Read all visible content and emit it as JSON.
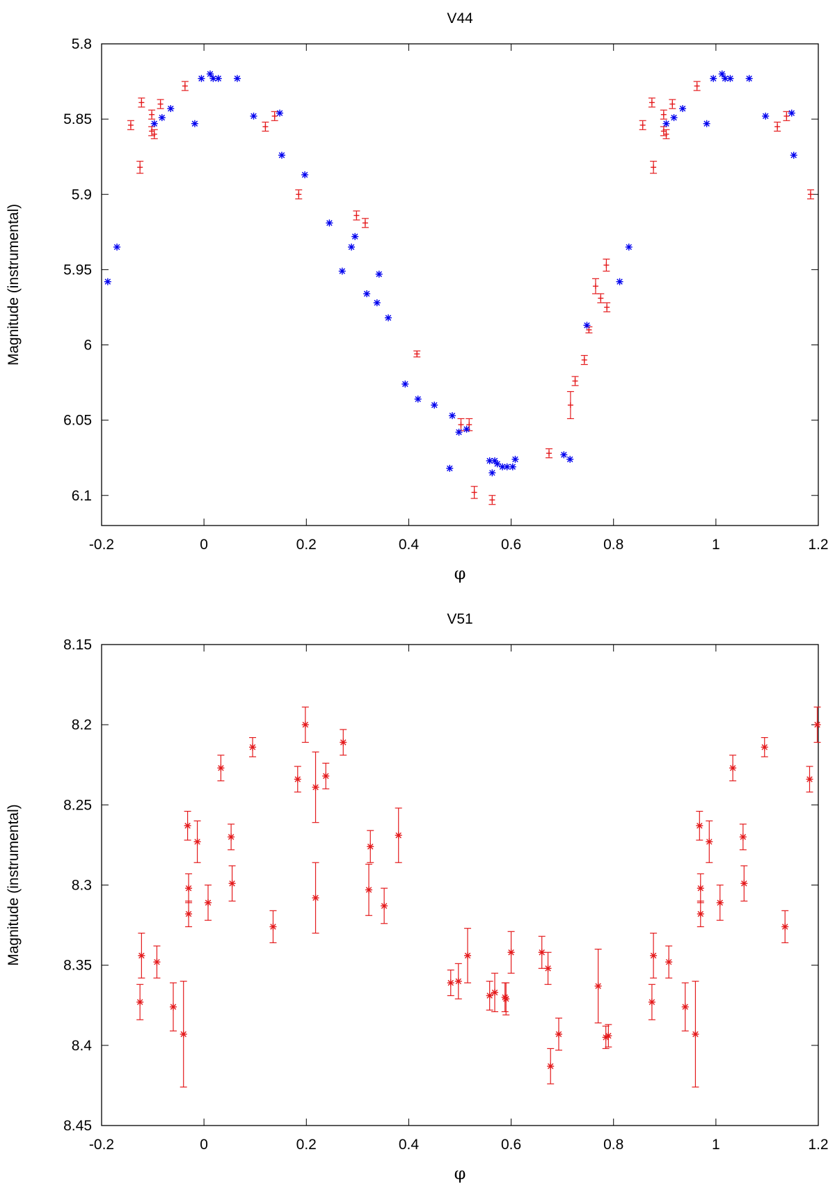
{
  "chart_data": [
    {
      "type": "scatter",
      "title": "V44",
      "xlabel": "φ",
      "ylabel": "Magnitude (instrumental)",
      "xlim": [
        -0.2,
        1.2
      ],
      "ylim": [
        5.8,
        6.12
      ],
      "y_inverted": true,
      "xticks": [
        "-0.2",
        "0",
        "0.2",
        "0.4",
        "0.6",
        "0.8",
        "1",
        "1.2"
      ],
      "yticks": [
        "5.8",
        "5.85",
        "5.9",
        "5.95",
        "6",
        "6.05",
        "6.1"
      ],
      "xtick_values": [
        -0.2,
        0,
        0.2,
        0.4,
        0.6,
        0.8,
        1,
        1.2
      ],
      "ytick_values": [
        5.8,
        5.85,
        5.9,
        5.95,
        6,
        6.05,
        6.1
      ],
      "grid": false,
      "series": [
        {
          "color": "#e41a1c",
          "marker": "plus-errorbar",
          "points": [
            [
              -0.143,
              5.854,
              0.003
            ],
            [
              -0.122,
              5.839,
              0.003
            ],
            [
              -0.125,
              5.882,
              0.004
            ],
            [
              -0.102,
              5.847,
              0.003
            ],
            [
              -0.102,
              5.858,
              0.003
            ],
            [
              -0.097,
              5.86,
              0.003
            ],
            [
              -0.085,
              5.84,
              0.003
            ],
            [
              -0.037,
              5.828,
              0.003
            ],
            [
              0.12,
              5.855,
              0.003
            ],
            [
              0.138,
              5.848,
              0.003
            ],
            [
              0.185,
              5.9,
              0.003
            ],
            [
              0.298,
              5.914,
              0.003
            ],
            [
              0.315,
              5.919,
              0.003
            ],
            [
              0.416,
              6.006,
              0.002
            ],
            [
              0.502,
              6.053,
              0.004
            ],
            [
              0.518,
              6.053,
              0.004
            ],
            [
              0.528,
              6.098,
              0.004
            ],
            [
              0.563,
              6.103,
              0.003
            ],
            [
              0.674,
              6.072,
              0.003
            ],
            [
              0.716,
              6.04,
              0.009
            ],
            [
              0.725,
              6.024,
              0.003
            ],
            [
              0.743,
              6.01,
              0.003
            ],
            [
              0.752,
              5.99,
              0.002
            ],
            [
              0.765,
              5.961,
              0.005
            ],
            [
              0.775,
              5.969,
              0.003
            ],
            [
              0.786,
              5.947,
              0.004
            ],
            [
              0.787,
              5.975,
              0.003
            ],
            [
              0.857,
              5.854,
              0.003
            ],
            [
              0.875,
              5.839,
              0.003
            ],
            [
              0.878,
              5.882,
              0.004
            ],
            [
              0.898,
              5.847,
              0.003
            ],
            [
              0.898,
              5.858,
              0.003
            ],
            [
              0.903,
              5.86,
              0.003
            ],
            [
              0.915,
              5.84,
              0.003
            ],
            [
              0.963,
              5.828,
              0.003
            ],
            [
              1.12,
              5.855,
              0.003
            ],
            [
              1.138,
              5.848,
              0.003
            ],
            [
              1.185,
              5.9,
              0.003
            ]
          ]
        },
        {
          "color": "#0000ee",
          "marker": "asterisk",
          "points": [
            [
              -0.188,
              5.958
            ],
            [
              -0.17,
              5.935
            ],
            [
              -0.097,
              5.853
            ],
            [
              -0.082,
              5.849
            ],
            [
              -0.065,
              5.843
            ],
            [
              -0.018,
              5.853
            ],
            [
              -0.005,
              5.823
            ],
            [
              0.012,
              5.82
            ],
            [
              0.018,
              5.823
            ],
            [
              0.028,
              5.823
            ],
            [
              0.065,
              5.823
            ],
            [
              0.097,
              5.848
            ],
            [
              0.148,
              5.846
            ],
            [
              0.152,
              5.874
            ],
            [
              0.197,
              5.887
            ],
            [
              0.245,
              5.919
            ],
            [
              0.27,
              5.951
            ],
            [
              0.288,
              5.935
            ],
            [
              0.295,
              5.928
            ],
            [
              0.318,
              5.966
            ],
            [
              0.338,
              5.972
            ],
            [
              0.342,
              5.953
            ],
            [
              0.36,
              5.982
            ],
            [
              0.393,
              6.026
            ],
            [
              0.418,
              6.036
            ],
            [
              0.45,
              6.04
            ],
            [
              0.485,
              6.047
            ],
            [
              0.498,
              6.058
            ],
            [
              0.513,
              6.056
            ],
            [
              0.48,
              6.082
            ],
            [
              0.558,
              6.077
            ],
            [
              0.568,
              6.077
            ],
            [
              0.573,
              6.079
            ],
            [
              0.583,
              6.081
            ],
            [
              0.592,
              6.081
            ],
            [
              0.603,
              6.081
            ],
            [
              0.608,
              6.076
            ],
            [
              0.563,
              6.085
            ],
            [
              0.703,
              6.073
            ],
            [
              0.715,
              6.076
            ],
            [
              0.748,
              5.987
            ],
            [
              0.812,
              5.958
            ],
            [
              0.83,
              5.935
            ],
            [
              0.903,
              5.853
            ],
            [
              0.918,
              5.849
            ],
            [
              0.935,
              5.843
            ],
            [
              0.982,
              5.853
            ],
            [
              0.995,
              5.823
            ],
            [
              1.012,
              5.82
            ],
            [
              1.018,
              5.823
            ],
            [
              1.028,
              5.823
            ],
            [
              1.065,
              5.823
            ],
            [
              1.097,
              5.848
            ],
            [
              1.148,
              5.846
            ],
            [
              1.152,
              5.874
            ]
          ]
        }
      ]
    },
    {
      "type": "scatter",
      "title": "V51",
      "xlabel": "φ",
      "ylabel": "Magnitude (instrumental)",
      "xlim": [
        -0.2,
        1.2
      ],
      "ylim": [
        8.15,
        8.45
      ],
      "y_inverted": true,
      "xticks": [
        "-0.2",
        "0",
        "0.2",
        "0.4",
        "0.6",
        "0.8",
        "1",
        "1.2"
      ],
      "yticks": [
        "8.15",
        "8.2",
        "8.25",
        "8.3",
        "8.35",
        "8.4",
        "8.45"
      ],
      "xtick_values": [
        -0.2,
        0,
        0.2,
        0.4,
        0.6,
        0.8,
        1,
        1.2
      ],
      "ytick_values": [
        8.15,
        8.2,
        8.25,
        8.3,
        8.35,
        8.4,
        8.45
      ],
      "grid": false,
      "series": [
        {
          "color": "#e41a1c",
          "marker": "asterisk-errorbar",
          "points": [
            [
              -0.125,
              8.373,
              0.011
            ],
            [
              -0.122,
              8.344,
              0.014
            ],
            [
              -0.092,
              8.348,
              0.01
            ],
            [
              -0.06,
              8.376,
              0.015
            ],
            [
              -0.04,
              8.393,
              0.033
            ],
            [
              -0.032,
              8.263,
              0.009
            ],
            [
              -0.03,
              8.302,
              0.009
            ],
            [
              -0.03,
              8.318,
              0.008
            ],
            [
              -0.013,
              8.273,
              0.013
            ],
            [
              0.008,
              8.311,
              0.011
            ],
            [
              0.033,
              8.227,
              0.008
            ],
            [
              0.053,
              8.27,
              0.008
            ],
            [
              0.055,
              8.299,
              0.011
            ],
            [
              0.095,
              8.214,
              0.006
            ],
            [
              0.135,
              8.326,
              0.01
            ],
            [
              0.183,
              8.234,
              0.008
            ],
            [
              0.198,
              8.2,
              0.011
            ],
            [
              0.218,
              8.239,
              0.022
            ],
            [
              0.218,
              8.308,
              0.022
            ],
            [
              0.238,
              8.232,
              0.008
            ],
            [
              0.272,
              8.211,
              0.008
            ],
            [
              0.322,
              8.303,
              0.016
            ],
            [
              0.325,
              8.276,
              0.01
            ],
            [
              0.352,
              8.313,
              0.011
            ],
            [
              0.38,
              8.269,
              0.017
            ],
            [
              0.482,
              8.361,
              0.008
            ],
            [
              0.497,
              8.36,
              0.011
            ],
            [
              0.515,
              8.344,
              0.017
            ],
            [
              0.558,
              8.369,
              0.009
            ],
            [
              0.568,
              8.367,
              0.012
            ],
            [
              0.588,
              8.37,
              0.009
            ],
            [
              0.59,
              8.371,
              0.01
            ],
            [
              0.6,
              8.342,
              0.013
            ],
            [
              0.66,
              8.342,
              0.01
            ],
            [
              0.672,
              8.352,
              0.01
            ],
            [
              0.677,
              8.413,
              0.011
            ],
            [
              0.693,
              8.393,
              0.01
            ],
            [
              0.77,
              8.363,
              0.023
            ],
            [
              0.785,
              8.395,
              0.007
            ],
            [
              0.79,
              8.394,
              0.007
            ],
            [
              0.875,
              8.373,
              0.011
            ],
            [
              0.878,
              8.344,
              0.014
            ],
            [
              0.908,
              8.348,
              0.01
            ],
            [
              0.94,
              8.376,
              0.015
            ],
            [
              0.96,
              8.393,
              0.033
            ],
            [
              0.968,
              8.263,
              0.009
            ],
            [
              0.97,
              8.302,
              0.009
            ],
            [
              0.97,
              8.318,
              0.008
            ],
            [
              0.987,
              8.273,
              0.013
            ],
            [
              1.008,
              8.311,
              0.011
            ],
            [
              1.033,
              8.227,
              0.008
            ],
            [
              1.053,
              8.27,
              0.008
            ],
            [
              1.055,
              8.299,
              0.011
            ],
            [
              1.095,
              8.214,
              0.006
            ],
            [
              1.135,
              8.326,
              0.01
            ],
            [
              1.183,
              8.234,
              0.008
            ],
            [
              1.198,
              8.2,
              0.011
            ]
          ]
        }
      ]
    }
  ]
}
